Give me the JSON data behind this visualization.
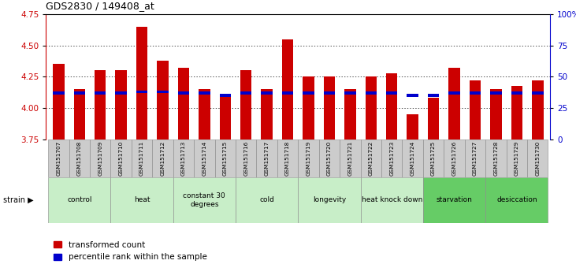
{
  "title": "GDS2830 / 149408_at",
  "samples": [
    "GSM151707",
    "GSM151708",
    "GSM151709",
    "GSM151710",
    "GSM151711",
    "GSM151712",
    "GSM151713",
    "GSM151714",
    "GSM151715",
    "GSM151716",
    "GSM151717",
    "GSM151718",
    "GSM151719",
    "GSM151720",
    "GSM151721",
    "GSM151722",
    "GSM151723",
    "GSM151724",
    "GSM151725",
    "GSM151726",
    "GSM151727",
    "GSM151728",
    "GSM151729",
    "GSM151730"
  ],
  "red_values": [
    4.35,
    4.15,
    4.3,
    4.3,
    4.65,
    4.38,
    4.32,
    4.15,
    4.1,
    4.3,
    4.15,
    4.55,
    4.25,
    4.25,
    4.15,
    4.25,
    4.28,
    3.95,
    4.08,
    4.32,
    4.22,
    4.15,
    4.18,
    4.22
  ],
  "blue_values": [
    4.12,
    4.12,
    4.12,
    4.12,
    4.13,
    4.13,
    4.12,
    4.12,
    4.1,
    4.12,
    4.12,
    4.12,
    4.12,
    4.12,
    4.12,
    4.12,
    4.12,
    4.1,
    4.1,
    4.12,
    4.12,
    4.12,
    4.12,
    4.12
  ],
  "ylim_left": [
    3.75,
    4.75
  ],
  "ylim_right": [
    0,
    100
  ],
  "yticks_left": [
    3.75,
    4.0,
    4.25,
    4.5,
    4.75
  ],
  "yticks_right": [
    0,
    25,
    50,
    75,
    100
  ],
  "groups": [
    {
      "label": "control",
      "start": 0,
      "end": 2,
      "color": "#c8eec8"
    },
    {
      "label": "heat",
      "start": 3,
      "end": 5,
      "color": "#c8eec8"
    },
    {
      "label": "constant 30\ndegrees",
      "start": 6,
      "end": 8,
      "color": "#c8eec8"
    },
    {
      "label": "cold",
      "start": 9,
      "end": 11,
      "color": "#c8eec8"
    },
    {
      "label": "longevity",
      "start": 12,
      "end": 14,
      "color": "#c8eec8"
    },
    {
      "label": "heat knock down",
      "start": 15,
      "end": 17,
      "color": "#c8eec8"
    },
    {
      "label": "starvation",
      "start": 18,
      "end": 20,
      "color": "#66cc66"
    },
    {
      "label": "desiccation",
      "start": 21,
      "end": 23,
      "color": "#66cc66"
    }
  ],
  "bar_color_red": "#cc0000",
  "bar_color_blue": "#0000cc",
  "bar_width": 0.55,
  "legend_red": "transformed count",
  "legend_blue": "percentile rank within the sample",
  "sample_box_color": "#cccccc"
}
